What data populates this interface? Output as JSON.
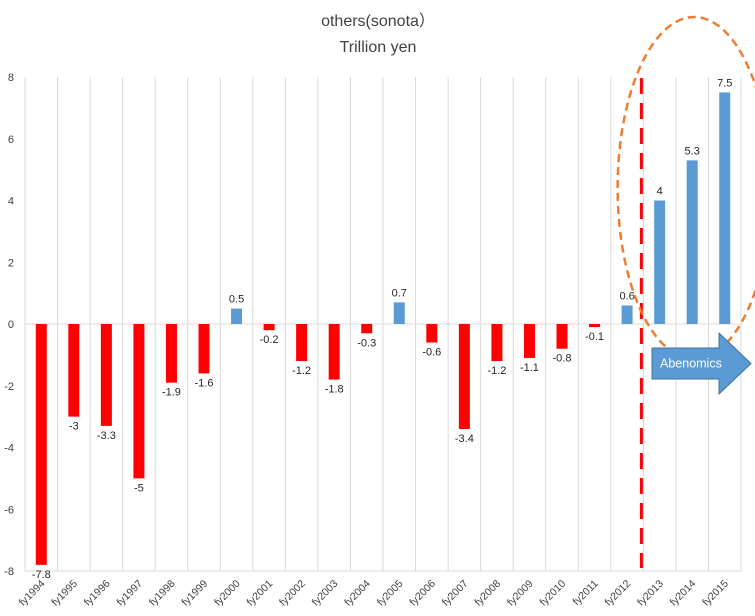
{
  "chart_data": {
    "type": "bar",
    "title": "others(sonota）",
    "subtitle": "Trillion yen",
    "xlabel": "",
    "ylabel": "",
    "ylim": [
      -8,
      8
    ],
    "yticks": [
      -8,
      -6,
      -4,
      -2,
      0,
      2,
      4,
      6,
      8
    ],
    "grid": "vertical",
    "categories": [
      "fy1994",
      "fy1995",
      "fy1996",
      "fy1997",
      "fy1998",
      "fy1999",
      "fy2000",
      "fy2001",
      "fy2002",
      "fy2003",
      "fy2004",
      "fy2005",
      "fy2006",
      "fy2007",
      "fy2008",
      "fy2009",
      "fy2010",
      "fy2011",
      "fy2012",
      "fy2013",
      "fy2014",
      "fy2015"
    ],
    "values": [
      -7.8,
      -3,
      -3.3,
      -5,
      -1.9,
      -1.6,
      0.5,
      -0.2,
      -1.2,
      -1.8,
      -0.3,
      0.7,
      -0.6,
      -3.4,
      -1.2,
      -1.1,
      -0.8,
      -0.1,
      0.6,
      4,
      5.3,
      7.5
    ],
    "data_labels": [
      "-7.8",
      "-3",
      "-3.3",
      "-5",
      "-1.9",
      "-1.6",
      "0.5",
      "-0.2",
      "-1.2",
      "-1.8",
      "-0.3",
      "0.7",
      "-0.6",
      "-3.4",
      "-1.2",
      "-1.1",
      "-0.8",
      "-0.1",
      "0.6",
      "4",
      "5.3",
      "7.5"
    ],
    "colors": {
      "positive": "#5b9bd5",
      "negative": "#ff0000",
      "divider": "#ff0000",
      "ellipse": "#ed7d31",
      "arrow": "#5b9bd5"
    },
    "annotations": {
      "divider_between": [
        "fy2012",
        "fy2013"
      ],
      "ellipse_around": [
        "fy2013",
        "fy2014",
        "fy2015"
      ],
      "arrow_label": "Abenomics"
    }
  }
}
